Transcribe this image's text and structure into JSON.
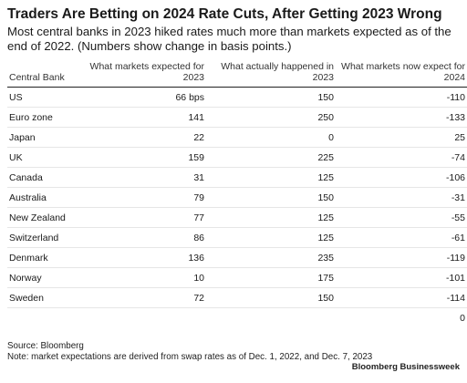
{
  "chart_data": {
    "type": "table",
    "title": "Traders Are Betting on 2024 Rate Cuts, After Getting 2023 Wrong",
    "subtitle": "Most central banks in 2023 hiked rates much more than markets expected as of the end of 2022. (Numbers show change in basis points.)",
    "columns": [
      "Central Bank",
      "What markets expected for 2023",
      "What actually happened in 2023",
      "What markets now expect for 2024"
    ],
    "rows": [
      [
        "US",
        "66 bps",
        "150",
        "-110"
      ],
      [
        "Euro zone",
        "141",
        "250",
        "-133"
      ],
      [
        "Japan",
        "22",
        "0",
        "25"
      ],
      [
        "UK",
        "159",
        "225",
        "-74"
      ],
      [
        "Canada",
        "31",
        "125",
        "-106"
      ],
      [
        "Australia",
        "79",
        "150",
        "-31"
      ],
      [
        "New Zealand",
        "77",
        "125",
        "-55"
      ],
      [
        "Switzerland",
        "86",
        "125",
        "-61"
      ],
      [
        "Denmark",
        "136",
        "235",
        "-119"
      ],
      [
        "Norway",
        "10",
        "175",
        "-101"
      ],
      [
        "Sweden",
        "72",
        "150",
        "-114"
      ],
      [
        "",
        "",
        "",
        "0"
      ]
    ],
    "source": "Source: Bloomberg",
    "note": "Note: market expectations are derived from swap rates as of Dec. 1, 2022, and Dec. 7, 2023",
    "brand": "Bloomberg Businessweek"
  }
}
